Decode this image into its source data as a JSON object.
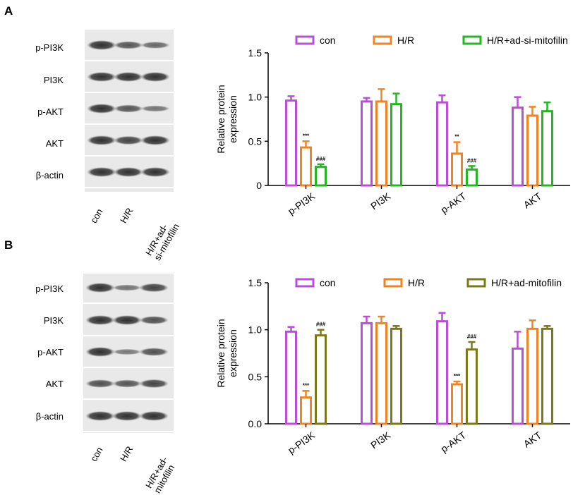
{
  "panels": [
    {
      "letter": "A",
      "band_labels": [
        "p-PI3K",
        "PI3K",
        "p-AKT",
        "AKT",
        "β-actin"
      ],
      "lane_labels": [
        "con",
        "H/R",
        "H/R+ad-\nsi-mitofilin"
      ],
      "blot_intensity": [
        [
          1.0,
          0.7,
          0.55
        ],
        [
          1.0,
          1.0,
          1.0
        ],
        [
          1.0,
          0.7,
          0.45
        ],
        [
          1.0,
          0.85,
          1.0
        ],
        [
          1.0,
          1.0,
          1.0
        ]
      ]
    },
    {
      "letter": "B",
      "band_labels": [
        "p-PI3K",
        "PI3K",
        "p-AKT",
        "AKT",
        "β-actin"
      ],
      "lane_labels": [
        "con",
        "H/R",
        "H/R+ad-\nmitofilin"
      ],
      "blot_intensity": [
        [
          1.0,
          0.45,
          0.85
        ],
        [
          1.0,
          1.0,
          0.75
        ],
        [
          1.0,
          0.4,
          0.75
        ],
        [
          0.75,
          0.7,
          0.85
        ],
        [
          1.0,
          1.0,
          1.0
        ]
      ]
    }
  ],
  "chart_data": [
    {
      "type": "bar",
      "ylabel": "Relative protein\nexpression",
      "ylim": [
        0,
        1.5
      ],
      "yticks": [
        "0",
        "0.5",
        "1.0",
        "1.5"
      ],
      "categories": [
        "p-PI3K",
        "PI3K",
        "p-AKT",
        "AKT"
      ],
      "series": [
        {
          "name": "con",
          "color": "#b84fd6",
          "values": [
            0.96,
            0.95,
            0.94,
            0.88
          ],
          "errors": [
            0.05,
            0.04,
            0.08,
            0.12
          ],
          "marks": [
            "",
            "",
            "",
            ""
          ]
        },
        {
          "name": "H/R",
          "color": "#f08424",
          "values": [
            0.43,
            0.95,
            0.36,
            0.79
          ],
          "errors": [
            0.07,
            0.14,
            0.13,
            0.1
          ],
          "marks": [
            "***",
            "",
            "**",
            ""
          ]
        },
        {
          "name": "H/R+ad-si-mitofilin",
          "color": "#22b822",
          "values": [
            0.21,
            0.92,
            0.18,
            0.84
          ],
          "errors": [
            0.03,
            0.12,
            0.04,
            0.1
          ],
          "marks": [
            "###",
            "",
            "###",
            ""
          ]
        }
      ]
    },
    {
      "type": "bar",
      "ylabel": "Relative protein\nexpression",
      "ylim": [
        0,
        1.5
      ],
      "yticks": [
        "0.0",
        "0.5",
        "1.0",
        "1.5"
      ],
      "categories": [
        "p-PI3K",
        "PI3K",
        "p-AKT",
        "AKT"
      ],
      "series": [
        {
          "name": "con",
          "color": "#b84fd6",
          "values": [
            0.98,
            1.07,
            1.09,
            0.8
          ],
          "errors": [
            0.05,
            0.07,
            0.09,
            0.18
          ],
          "marks": [
            "",
            "",
            "",
            ""
          ]
        },
        {
          "name": "H/R",
          "color": "#f08424",
          "values": [
            0.28,
            1.07,
            0.42,
            1.01
          ],
          "errors": [
            0.07,
            0.07,
            0.03,
            0.09
          ],
          "marks": [
            "***",
            "",
            "***",
            ""
          ]
        },
        {
          "name": "H/R+ad-mitofilin",
          "color": "#7a7a18",
          "values": [
            0.94,
            1.01,
            0.79,
            1.01
          ],
          "errors": [
            0.06,
            0.03,
            0.08,
            0.03
          ],
          "marks": [
            "###",
            "",
            "###",
            ""
          ]
        }
      ]
    }
  ]
}
